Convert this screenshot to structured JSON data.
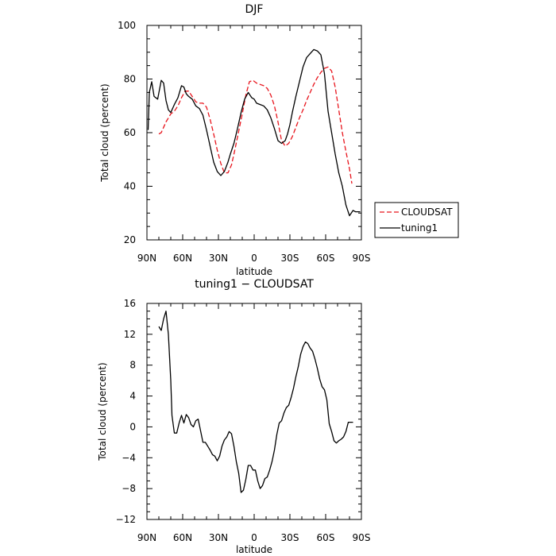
{
  "chart_data": [
    {
      "type": "line",
      "title": "DJF",
      "xlabel": "latitude",
      "ylabel": "Total cloud (percent)",
      "xlim": [
        90,
        -90
      ],
      "ylim": [
        20,
        100
      ],
      "xticks": [
        90,
        60,
        30,
        0,
        -30,
        -60,
        -90
      ],
      "xtick_labels": [
        "90N",
        "60N",
        "30N",
        "0",
        "30S",
        "60S",
        "90S"
      ],
      "yticks": [
        20,
        40,
        60,
        80,
        100
      ],
      "ytick_labels": [
        "20",
        "40",
        "60",
        "80",
        "100"
      ],
      "legend": "right, outside plot",
      "series": [
        {
          "name": "CLOUDSAT",
          "color": "#e8141c",
          "dash": "dashed",
          "x": [
            80,
            78,
            74,
            70,
            67,
            64,
            61,
            58,
            55,
            52,
            49,
            46,
            43,
            40,
            37,
            34,
            31,
            28,
            25,
            22,
            19,
            16,
            13,
            10,
            7,
            4,
            1,
            -2,
            -5,
            -8,
            -11,
            -14,
            -17,
            -20,
            -23,
            -26,
            -29,
            -32,
            -35,
            -38,
            -41,
            -44,
            -47,
            -50,
            -53,
            -56,
            -59,
            -62,
            -65,
            -68,
            -71,
            -74,
            -77,
            -80,
            -82
          ],
          "y": [
            59.5,
            60,
            64,
            67,
            68,
            70,
            73,
            75.5,
            75.5,
            73.5,
            71.5,
            71,
            71,
            69.5,
            65,
            59.5,
            53.5,
            48.5,
            45,
            45,
            48,
            54,
            60.5,
            67,
            74,
            79,
            79.5,
            78.5,
            78,
            77.5,
            76.5,
            74,
            70,
            64,
            57,
            55,
            56,
            58.5,
            62,
            65.5,
            68.5,
            72,
            75,
            78,
            80.5,
            82.5,
            84,
            84.5,
            83,
            77,
            68.5,
            60,
            53,
            46.5,
            41
          ]
        },
        {
          "name": "tuning1",
          "color": "#000000",
          "dash": "solid",
          "x": [
            89,
            88,
            86,
            84,
            81,
            78,
            76,
            74,
            72,
            70,
            67,
            64,
            61,
            59,
            57,
            55,
            52,
            49,
            46,
            43,
            40,
            37,
            34,
            31,
            28,
            25,
            22,
            20,
            17,
            14,
            11,
            8,
            5,
            2,
            0,
            -2,
            -5,
            -8,
            -11,
            -14,
            -17,
            -20,
            -23,
            -26,
            -28,
            -30,
            -32,
            -35,
            -38,
            -41,
            -44,
            -47,
            -50,
            -53,
            -56,
            -59,
            -62,
            -65,
            -68,
            -71,
            -74,
            -77,
            -80,
            -83,
            -85,
            -87,
            -88,
            -89
          ],
          "y": [
            61,
            75,
            79,
            73.5,
            72.5,
            79.5,
            78.5,
            72,
            68.5,
            67.5,
            70.5,
            73,
            77.5,
            77,
            74.5,
            73.5,
            72.5,
            70,
            69,
            66.5,
            61,
            55,
            49,
            45.5,
            44,
            45.5,
            49,
            52,
            56,
            61.5,
            67.5,
            72.5,
            75,
            73,
            72.5,
            71,
            70.5,
            70,
            68.5,
            65.5,
            61.5,
            57,
            56,
            57,
            59.5,
            63,
            67.5,
            73.5,
            79,
            84.5,
            88,
            89.5,
            91,
            90.5,
            89,
            82,
            68,
            60,
            52,
            45,
            40,
            33,
            29,
            31,
            30.5,
            30.5,
            30.5,
            30.5
          ]
        }
      ]
    },
    {
      "type": "line",
      "title": "tuning1 − CLOUDSAT",
      "xlabel": "latitude",
      "ylabel": "Total cloud (percent)",
      "xlim": [
        90,
        -90
      ],
      "ylim": [
        -12,
        16
      ],
      "xticks": [
        90,
        60,
        30,
        0,
        -30,
        -60,
        -90
      ],
      "xtick_labels": [
        "90N",
        "60N",
        "30N",
        "0",
        "30S",
        "60S",
        "90S"
      ],
      "yticks": [
        -12,
        -8,
        -4,
        0,
        4,
        8,
        12,
        16
      ],
      "ytick_labels": [
        "−12",
        "−8",
        "−4",
        "0",
        "4",
        "8",
        "12",
        "16"
      ],
      "series": [
        {
          "name": "",
          "color": "#000000",
          "dash": "solid",
          "x": [
            80,
            78,
            76,
            74,
            72,
            70,
            69,
            67,
            65,
            63,
            61,
            59,
            57,
            55,
            53,
            51,
            49,
            47,
            45,
            43,
            41,
            39,
            37,
            35,
            33,
            31,
            29,
            27,
            25,
            23,
            21,
            19,
            17,
            15,
            13,
            11,
            9,
            7,
            5,
            3,
            1,
            -1,
            -3,
            -5,
            -7,
            -9,
            -11,
            -13,
            -15,
            -17,
            -19,
            -21,
            -23,
            -25,
            -27,
            -29,
            -31,
            -33,
            -35,
            -37,
            -39,
            -41,
            -43,
            -45,
            -47,
            -49,
            -51,
            -53,
            -55,
            -57,
            -59,
            -61,
            -63,
            -65,
            -67,
            -69,
            -71,
            -73,
            -75,
            -77,
            -79,
            -81,
            -83
          ],
          "y": [
            13,
            12.5,
            14,
            15,
            12,
            6,
            1.5,
            -0.8,
            -0.8,
            0.5,
            1.5,
            0.5,
            1.6,
            1.2,
            0.3,
            0,
            0.8,
            1,
            -0.5,
            -2,
            -2,
            -2.5,
            -3,
            -3.6,
            -3.8,
            -4.4,
            -3.8,
            -2.5,
            -1.7,
            -1.3,
            -0.6,
            -0.9,
            -2.5,
            -4.5,
            -6,
            -8.5,
            -8.2,
            -6.8,
            -5,
            -5,
            -5.6,
            -5.6,
            -7,
            -8,
            -7.6,
            -6.7,
            -6.5,
            -5.6,
            -4.5,
            -3,
            -1,
            0.5,
            0.8,
            1.8,
            2.5,
            2.8,
            3.8,
            5,
            6.5,
            7.8,
            9.4,
            10.4,
            11,
            10.8,
            10.2,
            9.8,
            8.8,
            7.6,
            6.2,
            5.2,
            4.8,
            3.5,
            0.4,
            -0.6,
            -1.8,
            -2.1,
            -1.8,
            -1.6,
            -1.3,
            -0.6,
            0.6,
            0.6,
            0.6
          ]
        }
      ]
    }
  ]
}
